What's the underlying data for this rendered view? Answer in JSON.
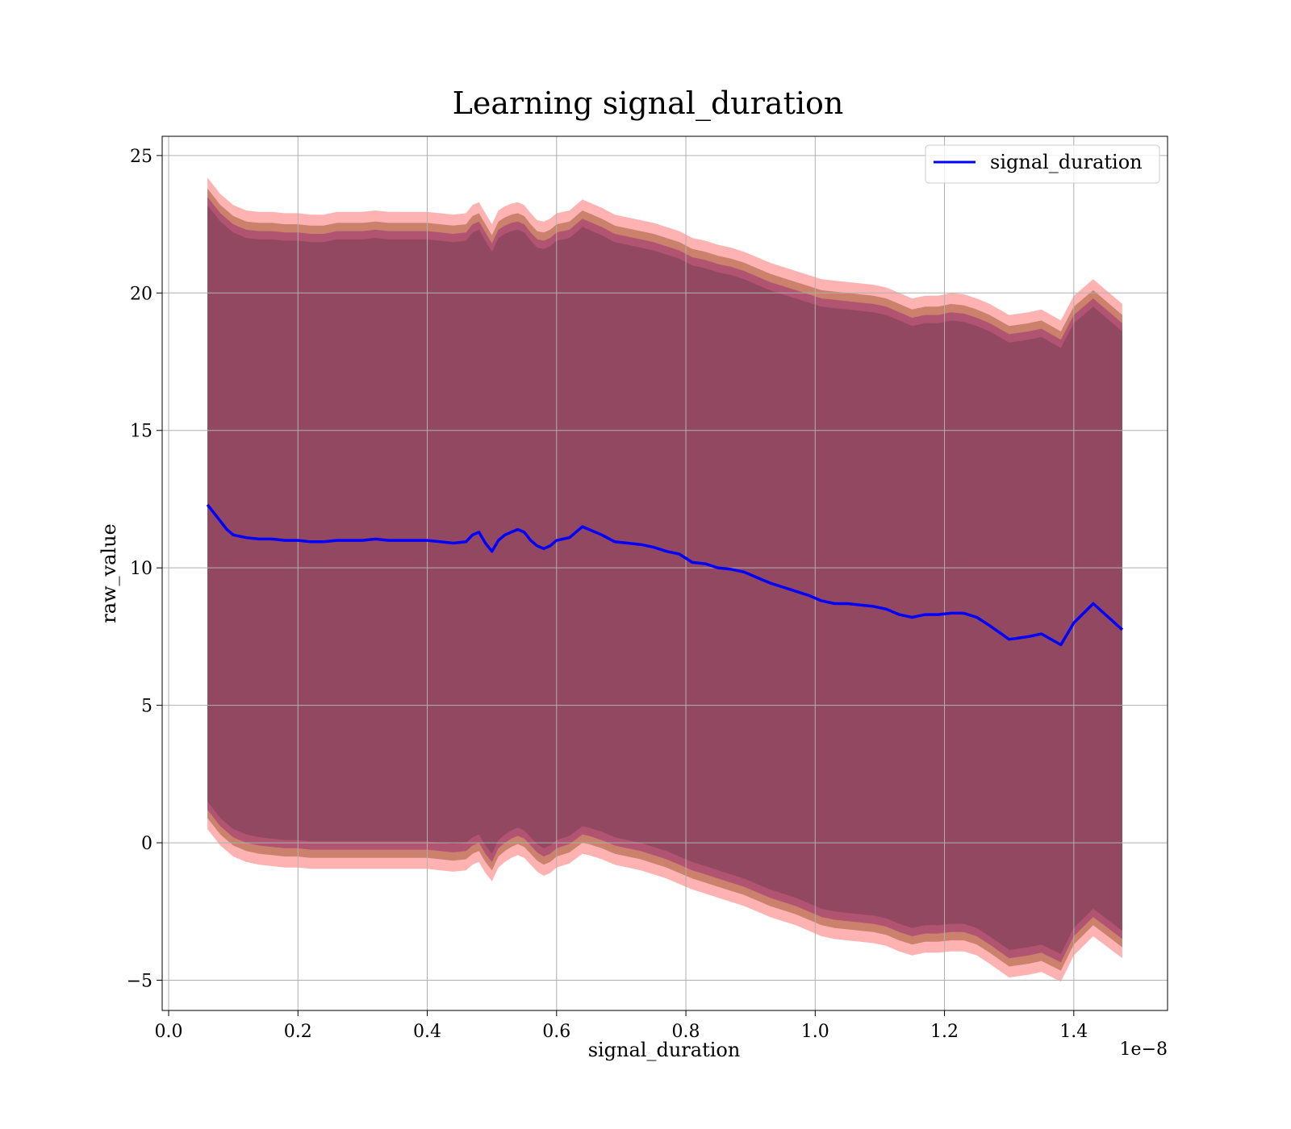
{
  "chart_data": {
    "type": "line",
    "title": "Learning signal_duration",
    "xlabel": "signal_duration",
    "ylabel": "raw_value",
    "x_offset_label": "1e−8",
    "xlim": [
      -0.01,
      1.545
    ],
    "ylim": [
      -6.1,
      25.7
    ],
    "x_ticks": [
      0.0,
      0.2,
      0.4,
      0.6,
      0.8,
      1.0,
      1.2,
      1.4
    ],
    "x_tick_labels": [
      "0.0",
      "0.2",
      "0.4",
      "0.6",
      "0.8",
      "1.0",
      "1.2",
      "1.4"
    ],
    "y_ticks": [
      -5,
      0,
      5,
      10,
      15,
      20,
      25
    ],
    "y_tick_labels": [
      "−5",
      "0",
      "5",
      "10",
      "15",
      "20",
      "25"
    ],
    "grid": true,
    "legend_position": "top-right",
    "colors": {
      "line": "#0000ff",
      "outer_band": "#ff0000",
      "middle_band": "#8b4513",
      "inner_band": "#800080",
      "grid": "#b0b0b0"
    },
    "series": [
      {
        "name": "signal_duration",
        "x": [
          0.06,
          0.07,
          0.08,
          0.09,
          0.1,
          0.12,
          0.14,
          0.16,
          0.18,
          0.2,
          0.22,
          0.24,
          0.26,
          0.28,
          0.3,
          0.32,
          0.34,
          0.36,
          0.38,
          0.4,
          0.42,
          0.44,
          0.46,
          0.47,
          0.48,
          0.49,
          0.5,
          0.51,
          0.52,
          0.53,
          0.54,
          0.55,
          0.56,
          0.57,
          0.58,
          0.59,
          0.6,
          0.62,
          0.64,
          0.65,
          0.67,
          0.69,
          0.71,
          0.73,
          0.75,
          0.77,
          0.79,
          0.81,
          0.83,
          0.85,
          0.87,
          0.89,
          0.91,
          0.93,
          0.95,
          0.97,
          0.99,
          1.01,
          1.03,
          1.05,
          1.07,
          1.09,
          1.11,
          1.13,
          1.15,
          1.17,
          1.19,
          1.21,
          1.23,
          1.25,
          1.27,
          1.3,
          1.33,
          1.35,
          1.38,
          1.4,
          1.43,
          1.475
        ],
        "values": [
          12.3,
          12.0,
          11.7,
          11.4,
          11.2,
          11.1,
          11.05,
          11.05,
          11.0,
          11.0,
          10.95,
          10.95,
          11.0,
          11.0,
          11.0,
          11.05,
          11.0,
          11.0,
          11.0,
          11.0,
          10.95,
          10.9,
          10.95,
          11.2,
          11.3,
          10.9,
          10.6,
          11.0,
          11.2,
          11.3,
          11.4,
          11.3,
          11.0,
          10.8,
          10.7,
          10.8,
          11.0,
          11.1,
          11.5,
          11.4,
          11.2,
          10.95,
          10.9,
          10.85,
          10.75,
          10.6,
          10.5,
          10.2,
          10.15,
          10.0,
          9.95,
          9.85,
          9.65,
          9.45,
          9.3,
          9.15,
          9.0,
          8.8,
          8.7,
          8.7,
          8.65,
          8.6,
          8.5,
          8.3,
          8.2,
          8.3,
          8.3,
          8.35,
          8.35,
          8.2,
          7.9,
          7.4,
          7.5,
          7.6,
          7.2,
          8.0,
          8.7,
          7.75
        ],
        "lower": [
          1.5,
          1.2,
          0.9,
          0.7,
          0.5,
          0.3,
          0.2,
          0.15,
          0.1,
          0.1,
          0.05,
          0.05,
          0.05,
          0.05,
          0.05,
          0.05,
          0.05,
          0.05,
          0.05,
          0.05,
          0.0,
          -0.05,
          0.0,
          0.2,
          0.3,
          -0.1,
          -0.4,
          0.1,
          0.3,
          0.45,
          0.55,
          0.45,
          0.2,
          -0.05,
          -0.2,
          -0.1,
          0.1,
          0.25,
          0.6,
          0.55,
          0.4,
          0.2,
          0.1,
          0.0,
          -0.15,
          -0.3,
          -0.5,
          -0.7,
          -0.85,
          -1.0,
          -1.15,
          -1.3,
          -1.5,
          -1.7,
          -1.85,
          -2.0,
          -2.2,
          -2.4,
          -2.5,
          -2.55,
          -2.6,
          -2.65,
          -2.75,
          -2.95,
          -3.1,
          -3.0,
          -3.0,
          -2.95,
          -2.95,
          -3.1,
          -3.4,
          -3.9,
          -3.8,
          -3.7,
          -4.05,
          -3.1,
          -2.4,
          -3.2
        ],
        "upper": [
          23.2,
          22.9,
          22.6,
          22.4,
          22.2,
          22.0,
          21.95,
          21.95,
          21.9,
          21.9,
          21.85,
          21.85,
          21.95,
          21.95,
          21.95,
          22.0,
          21.95,
          21.95,
          21.95,
          21.95,
          21.9,
          21.85,
          21.9,
          22.2,
          22.3,
          21.9,
          21.5,
          22.0,
          22.15,
          22.25,
          22.3,
          22.2,
          21.9,
          21.65,
          21.6,
          21.7,
          21.9,
          22.0,
          22.4,
          22.3,
          22.1,
          21.85,
          21.75,
          21.65,
          21.55,
          21.4,
          21.25,
          21.0,
          20.9,
          20.75,
          20.65,
          20.5,
          20.3,
          20.1,
          19.95,
          19.8,
          19.65,
          19.5,
          19.45,
          19.4,
          19.35,
          19.3,
          19.2,
          19.0,
          18.8,
          18.9,
          18.9,
          19.0,
          18.95,
          18.8,
          18.6,
          18.2,
          18.3,
          18.4,
          18.0,
          18.9,
          19.5,
          18.6
        ]
      }
    ]
  }
}
